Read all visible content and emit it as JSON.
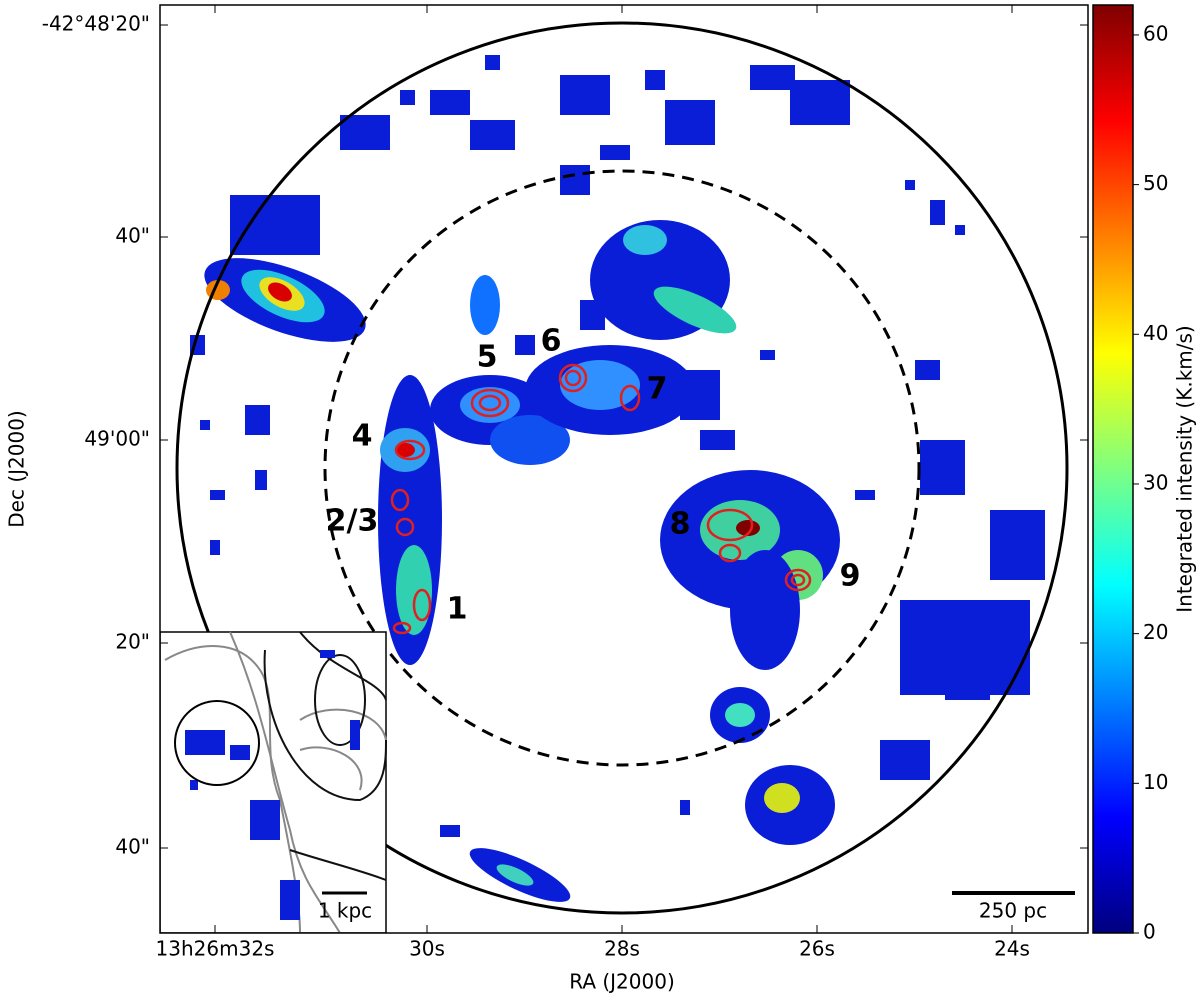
{
  "chart_data": {
    "type": "image",
    "xlabel": "RA (J2000)",
    "ylabel": "Dec (J2000)",
    "xtick_labels": [
      "13h26m32s",
      "30s",
      "28s",
      "26s",
      "24s"
    ],
    "ytick_labels": [
      "-42°48'20\"",
      "40\"",
      "49'00\"",
      "20\"",
      "40\""
    ],
    "annotations": [
      "1",
      "2/3",
      "4",
      "5",
      "6",
      "7",
      "8",
      "9"
    ],
    "scale_bar": "250 pc",
    "inset_scale_bar": "1 kpc",
    "colorbar": {
      "label": "Integrated intensity (K.km/s)",
      "colormap": "jet",
      "ylim": [
        0,
        62
      ],
      "yticks": [
        0,
        10,
        20,
        30,
        40,
        50,
        60
      ]
    }
  }
}
